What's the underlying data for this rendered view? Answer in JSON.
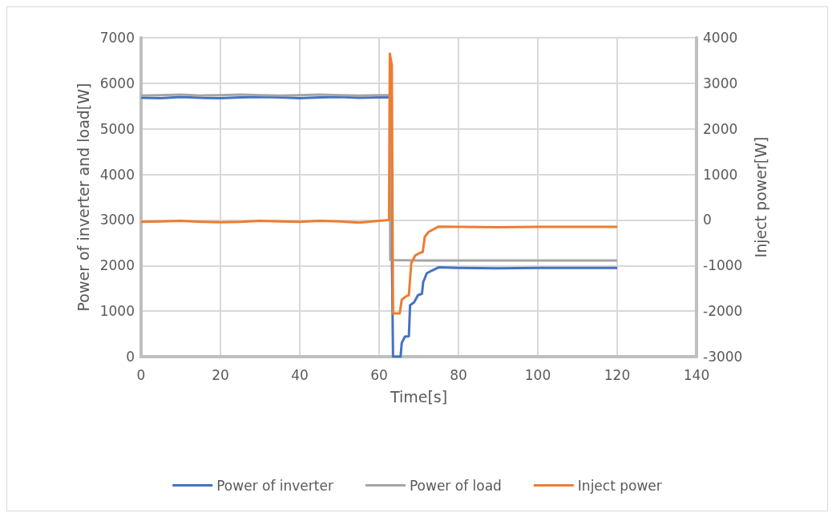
{
  "chart_data": {
    "type": "line",
    "xlabel": "Time[s]",
    "ylabel": "Power of inverter and load[W]",
    "y2label": "Inject power[W]",
    "xlim": [
      0,
      140
    ],
    "xticks": [
      0,
      20,
      40,
      60,
      80,
      100,
      120,
      140
    ],
    "ylim": [
      0,
      7000
    ],
    "yticks": [
      0,
      1000,
      2000,
      3000,
      4000,
      5000,
      6000,
      7000
    ],
    "y2lim": [
      -3000,
      4000
    ],
    "y2ticks": [
      -3000,
      -2000,
      -1000,
      0,
      1000,
      2000,
      3000,
      4000
    ],
    "grid": true,
    "legend": "bottom",
    "marker": "none",
    "line_style": "solid",
    "series": [
      {
        "name": "Power of inverter",
        "color": "#4472c4",
        "x": [
          0,
          5,
          10,
          15,
          20,
          25,
          30,
          35,
          40,
          45,
          50,
          55,
          60,
          62.8,
          63.5,
          65.4,
          65.7,
          66.5,
          67.5,
          67.8,
          68.8,
          69.8,
          70.8,
          71.1,
          72,
          73.3,
          75,
          80,
          90,
          100,
          110,
          120
        ],
        "values": [
          5680,
          5670,
          5700,
          5680,
          5670,
          5690,
          5700,
          5690,
          5670,
          5690,
          5700,
          5680,
          5690,
          5690,
          0,
          0,
          300,
          440,
          450,
          1130,
          1190,
          1350,
          1380,
          1630,
          1830,
          1890,
          1960,
          1950,
          1940,
          1950,
          1950,
          1950
        ]
      },
      {
        "name": "Power of load",
        "color": "#a5a5a5",
        "x": [
          0,
          5,
          10,
          15,
          20,
          25,
          30,
          35,
          40,
          45,
          50,
          55,
          60,
          62.7,
          62.8,
          70,
          80,
          90,
          100,
          110,
          120
        ],
        "values": [
          5730,
          5740,
          5750,
          5730,
          5740,
          5750,
          5740,
          5730,
          5740,
          5750,
          5740,
          5730,
          5740,
          5740,
          2120,
          2110,
          2110,
          2110,
          2110,
          2110,
          2110
        ]
      },
      {
        "name": "Inject power",
        "color": "#ed7d31",
        "axis": "y2",
        "x": [
          0,
          5,
          10,
          15,
          20,
          25,
          30,
          35,
          40,
          45,
          50,
          55,
          60,
          62.5,
          62.7,
          63.2,
          63.5,
          65.2,
          65.7,
          66.9,
          67.5,
          68.1,
          69.1,
          70.1,
          71,
          71.5,
          72.5,
          75,
          80,
          90,
          100,
          110,
          120
        ],
        "values": [
          -40,
          -30,
          -20,
          -40,
          -50,
          -40,
          -20,
          -30,
          -40,
          -20,
          -30,
          -60,
          -20,
          0,
          3650,
          3400,
          -2050,
          -2050,
          -1750,
          -1670,
          -1650,
          -950,
          -780,
          -730,
          -700,
          -370,
          -260,
          -145,
          -150,
          -160,
          -150,
          -150,
          -150
        ]
      }
    ]
  }
}
